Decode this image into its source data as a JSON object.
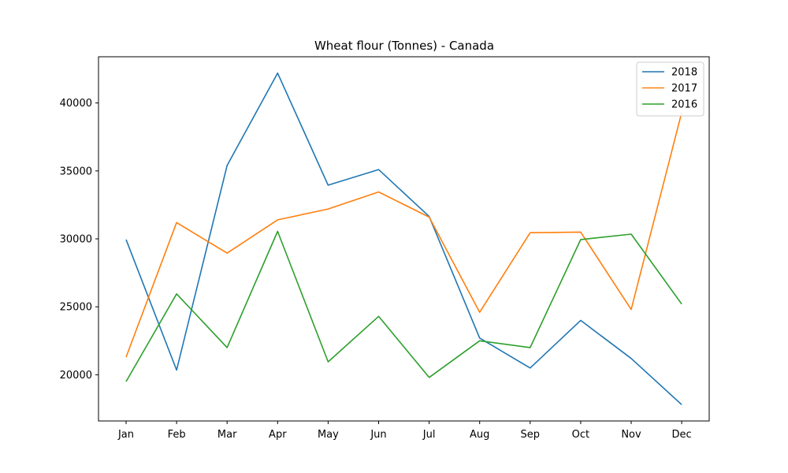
{
  "chart_data": {
    "type": "line",
    "title": "Wheat flour (Tonnes) - Canada",
    "xlabel": "",
    "ylabel": "",
    "categories": [
      "Jan",
      "Feb",
      "Mar",
      "Apr",
      "May",
      "Jun",
      "Jul",
      "Aug",
      "Sep",
      "Oct",
      "Nov",
      "Dec"
    ],
    "series": [
      {
        "name": "2018",
        "color": "#1f77b4",
        "values": [
          29950,
          20350,
          35400,
          42200,
          33950,
          35100,
          31650,
          22700,
          20500,
          24000,
          21200,
          17800
        ]
      },
      {
        "name": "2017",
        "color": "#ff7f0e",
        "values": [
          21300,
          31200,
          28950,
          31400,
          32200,
          33450,
          31600,
          24600,
          30450,
          30500,
          24800,
          39300
        ]
      },
      {
        "name": "2016",
        "color": "#2ca02c",
        "values": [
          19500,
          25950,
          22000,
          30550,
          20950,
          24300,
          19800,
          22500,
          22000,
          29950,
          30350,
          25200
        ]
      }
    ],
    "yticks": [
      20000,
      25000,
      30000,
      35000,
      40000
    ],
    "ylim": [
      16600,
      43400
    ],
    "grid": false,
    "legend_position": "top-right"
  }
}
